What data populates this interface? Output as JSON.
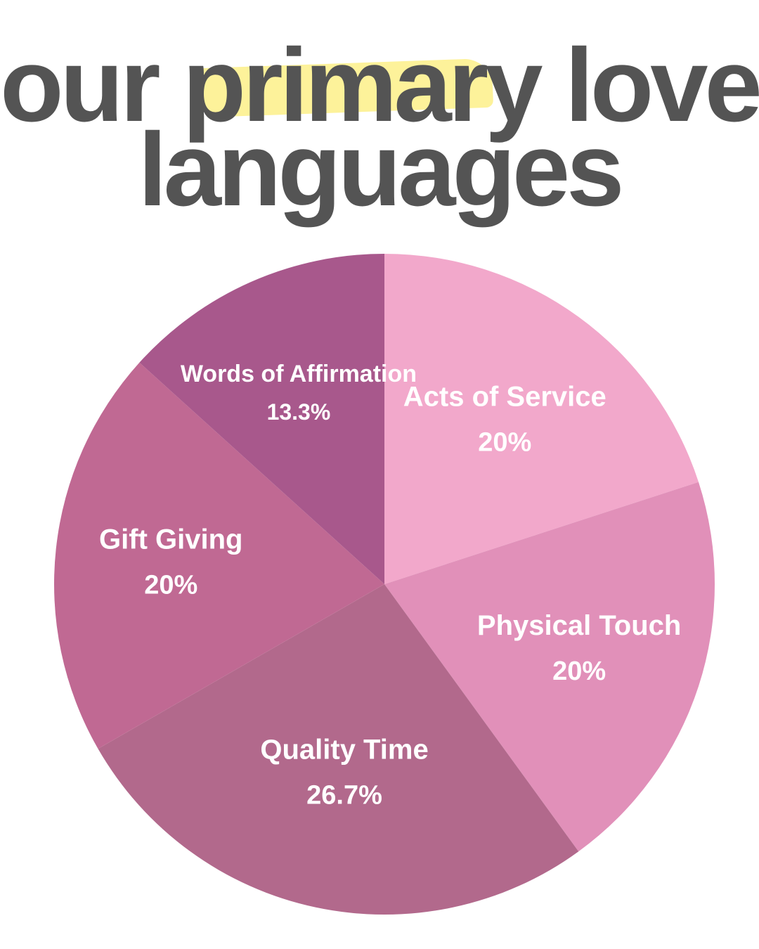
{
  "title": {
    "part1": "our ",
    "highlight": "primar",
    "part2": "y love",
    "line2": "languages"
  },
  "colors": {
    "title_text": "#545454",
    "highlight": "#FDF29A",
    "label_text": "#FFFFFF"
  },
  "chart_data": {
    "type": "pie",
    "start_angle_deg": 0,
    "direction": "clockwise",
    "slices": [
      {
        "label": "Acts of Service",
        "value": 20,
        "value_label": "20%",
        "color": "#F2A8CB"
      },
      {
        "label": "Physical Touch",
        "value": 20,
        "value_label": "20%",
        "color": "#E190B9"
      },
      {
        "label": "Quality Time",
        "value": 26.7,
        "value_label": "26.7%",
        "color": "#B2698C"
      },
      {
        "label": "Gift Giving",
        "value": 20,
        "value_label": "20%",
        "color": "#C06993"
      },
      {
        "label": "Words of Affirmation",
        "value": 13.3,
        "value_label": "13.3%",
        "color": "#A8588C"
      }
    ]
  }
}
